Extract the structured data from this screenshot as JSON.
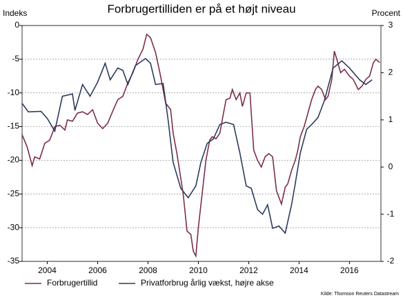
{
  "chart_data": {
    "type": "line",
    "title": "Forbrugertilliden er på et højt niveau",
    "y_label": "Indeks",
    "y2_label": "Procent",
    "source": "Kilde: Thomson Reuters Datastream",
    "xlim": [
      2003,
      2017.25
    ],
    "xticks": [
      2004,
      2006,
      2008,
      2010,
      2012,
      2014,
      2016
    ],
    "ylim": [
      -35,
      0
    ],
    "yticks": [
      0,
      -5,
      -10,
      -15,
      -20,
      -25,
      -30,
      -35
    ],
    "y2lim": [
      -2,
      3
    ],
    "y2ticks": [
      3,
      2,
      1,
      0,
      -1,
      -2
    ],
    "grid": true,
    "legend": "bottom",
    "series": [
      {
        "name": "Forbrugertillid",
        "color": "#7b2d4a",
        "x": [
          2003.0,
          2003.2,
          2003.4,
          2003.5,
          2003.7,
          2003.9,
          2004.1,
          2004.3,
          2004.5,
          2004.7,
          2004.8,
          2005.0,
          2005.2,
          2005.4,
          2005.6,
          2005.8,
          2006.0,
          2006.2,
          2006.4,
          2006.6,
          2006.8,
          2007.0,
          2007.2,
          2007.4,
          2007.6,
          2007.8,
          2007.95,
          2008.1,
          2008.3,
          2008.5,
          2008.7,
          2008.9,
          2009.0,
          2009.15,
          2009.4,
          2009.55,
          2009.7,
          2009.8,
          2009.9,
          2010.0,
          2010.15,
          2010.3,
          2010.45,
          2010.55,
          2010.7,
          2010.85,
          2011.0,
          2011.1,
          2011.25,
          2011.35,
          2011.5,
          2011.65,
          2011.75,
          2011.9,
          2012.05,
          2012.2,
          2012.35,
          2012.5,
          2012.65,
          2012.8,
          2012.95,
          2013.1,
          2013.3,
          2013.45,
          2013.55,
          2013.7,
          2013.85,
          2013.95,
          2014.05,
          2014.2,
          2014.35,
          2014.5,
          2014.65,
          2014.75,
          2014.9,
          2015.05,
          2015.15,
          2015.3,
          2015.4,
          2015.5,
          2015.65,
          2015.8,
          2016.0,
          2016.15,
          2016.35,
          2016.5,
          2016.65,
          2016.8,
          2016.95,
          2017.05,
          2017.2
        ],
        "values": [
          -16.2,
          -18,
          -20.8,
          -19.5,
          -19.8,
          -17.5,
          -17,
          -15,
          -14.8,
          -15.5,
          -14,
          -14.2,
          -13,
          -12.8,
          -13.2,
          -12.5,
          -14.5,
          -15.3,
          -14.5,
          -12.7,
          -11,
          -10.5,
          -8.5,
          -7,
          -5,
          -3.5,
          -1.3,
          -1.8,
          -4,
          -7.5,
          -11.5,
          -12.5,
          -16,
          -19,
          -25,
          -30.5,
          -31,
          -33.5,
          -34.2,
          -30,
          -25,
          -20,
          -17,
          -16.5,
          -16.8,
          -16,
          -13,
          -11,
          -10.8,
          -9.5,
          -11,
          -10,
          -12,
          -10,
          -10,
          -18.5,
          -20,
          -21,
          -19.5,
          -19,
          -19.5,
          -24.5,
          -26.5,
          -24,
          -23.5,
          -21.5,
          -20,
          -18.5,
          -16.5,
          -15,
          -13,
          -11,
          -9.5,
          -9,
          -9.5,
          -11,
          -10.5,
          -8,
          -3.8,
          -5,
          -7,
          -6.5,
          -7.5,
          -8,
          -9.5,
          -9,
          -8,
          -7.5,
          -5.5,
          -5,
          -5.5
        ]
      },
      {
        "name": "Privatforbrug årlig vækst, højre akse",
        "color": "#2b3a5a",
        "axis": "y2",
        "x": [
          2003.0,
          2003.25,
          2003.75,
          2004.0,
          2004.3,
          2004.6,
          2005.0,
          2005.1,
          2005.4,
          2005.7,
          2006.0,
          2006.3,
          2006.5,
          2006.8,
          2007.0,
          2007.2,
          2007.5,
          2007.9,
          2008.1,
          2008.3,
          2008.6,
          2008.8,
          2009.0,
          2009.3,
          2009.6,
          2009.9,
          2010.1,
          2010.35,
          2010.6,
          2010.85,
          2011.1,
          2011.4,
          2011.65,
          2011.9,
          2012.1,
          2012.35,
          2012.55,
          2012.75,
          2012.95,
          2013.2,
          2013.45,
          2013.7,
          2013.85,
          2014.05,
          2014.3,
          2014.5,
          2014.75,
          2015.0,
          2015.35,
          2015.7,
          2016.0,
          2016.4,
          2016.65,
          2016.9
        ],
        "values": [
          1.35,
          1.17,
          1.18,
          1.03,
          0.76,
          1.5,
          1.55,
          1.2,
          1.75,
          1.5,
          1.8,
          2.2,
          1.85,
          2.1,
          2.05,
          1.75,
          2.15,
          2.3,
          2.2,
          1.75,
          1.77,
          1.0,
          0.1,
          -0.45,
          -0.65,
          -0.4,
          0.1,
          0.5,
          0.6,
          0.9,
          0.95,
          0.9,
          0.3,
          -0.4,
          -0.45,
          -0.9,
          -1.0,
          -0.8,
          -1.3,
          -1.25,
          -1.4,
          -0.8,
          -0.35,
          0.3,
          0.8,
          0.9,
          1.05,
          1.4,
          2.1,
          2.25,
          2.1,
          1.85,
          1.75,
          1.85
        ]
      }
    ]
  }
}
